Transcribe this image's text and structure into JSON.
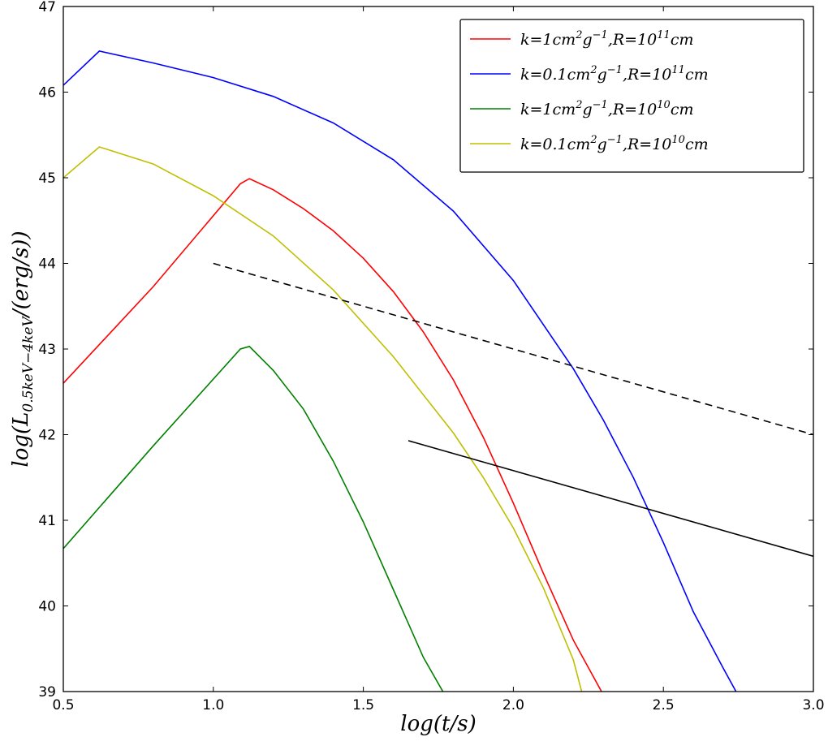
{
  "chart_data": {
    "type": "line",
    "xlabel": "log(t/s)",
    "ylabel": "log(L_{0.5keV-4keV}/(erg/s))",
    "xlim": [
      0.5,
      3.0
    ],
    "ylim": [
      39,
      47
    ],
    "xticks": [
      0.5,
      1.0,
      1.5,
      2.0,
      2.5,
      3.0
    ],
    "xtick_labels": [
      "0.5",
      "1.0",
      "1.5",
      "2.0",
      "2.5",
      "3.0"
    ],
    "yticks": [
      39,
      40,
      41,
      42,
      43,
      44,
      45,
      46,
      47
    ],
    "ytick_labels": [
      "39",
      "40",
      "41",
      "42",
      "43",
      "44",
      "45",
      "46",
      "47"
    ],
    "grid": false,
    "legend_position": "top-right",
    "series": [
      {
        "name": "k=1cm²g⁻¹,R=10¹¹cm",
        "legend": {
          "k": "1",
          "R_exp": "11"
        },
        "color": "#ff0000",
        "style": "solid",
        "in_legend": true,
        "x": [
          0.5,
          0.8,
          1.09,
          1.12,
          1.2,
          1.3,
          1.4,
          1.5,
          1.6,
          1.7,
          1.8,
          1.9,
          2.0,
          2.1,
          2.2,
          2.3
        ],
        "y": [
          42.6,
          43.73,
          44.93,
          44.99,
          44.86,
          44.64,
          44.38,
          44.06,
          43.67,
          43.2,
          42.64,
          41.97,
          41.2,
          40.38,
          39.6,
          38.96
        ]
      },
      {
        "name": "k=0.1cm²g⁻¹,R=10¹¹cm",
        "legend": {
          "k": "0.1",
          "R_exp": "11"
        },
        "color": "#0000ff",
        "style": "solid",
        "in_legend": true,
        "x": [
          0.5,
          0.62,
          0.8,
          1.0,
          1.2,
          1.4,
          1.6,
          1.8,
          2.0,
          2.2,
          2.3,
          2.4,
          2.5,
          2.6,
          2.7,
          2.75
        ],
        "y": [
          46.08,
          46.48,
          46.34,
          46.17,
          45.95,
          45.64,
          45.21,
          44.61,
          43.8,
          42.77,
          42.17,
          41.5,
          40.74,
          39.93,
          39.27,
          38.95
        ]
      },
      {
        "name": "k=1cm²g⁻¹,R=10¹⁰cm",
        "legend": {
          "k": "1",
          "R_exp": "10"
        },
        "color": "#008000",
        "style": "solid",
        "in_legend": true,
        "x": [
          0.5,
          0.8,
          1.09,
          1.12,
          1.2,
          1.3,
          1.4,
          1.5,
          1.6,
          1.7,
          1.77
        ],
        "y": [
          40.67,
          41.87,
          43.0,
          43.03,
          42.75,
          42.3,
          41.69,
          40.98,
          40.19,
          39.4,
          38.97
        ]
      },
      {
        "name": "k=0.1cm²g⁻¹,R=10¹⁰cm",
        "legend": {
          "k": "0.1",
          "R_exp": "10"
        },
        "color": "#bfbf00",
        "style": "solid",
        "in_legend": true,
        "x": [
          0.5,
          0.62,
          0.8,
          1.0,
          1.2,
          1.4,
          1.6,
          1.8,
          1.9,
          2.0,
          2.1,
          2.2,
          2.23
        ],
        "y": [
          45.0,
          45.36,
          45.16,
          44.79,
          44.32,
          43.69,
          42.91,
          42.02,
          41.5,
          40.91,
          40.21,
          39.37,
          38.97
        ]
      },
      {
        "name": "dashed reference",
        "color": "#000000",
        "style": "dashed",
        "in_legend": false,
        "x": [
          1.0,
          3.0
        ],
        "y": [
          44.0,
          42.0
        ]
      },
      {
        "name": "solid reference",
        "color": "#000000",
        "style": "solid",
        "in_legend": false,
        "x": [
          1.65,
          3.0
        ],
        "y": [
          41.93,
          40.58
        ]
      }
    ]
  }
}
